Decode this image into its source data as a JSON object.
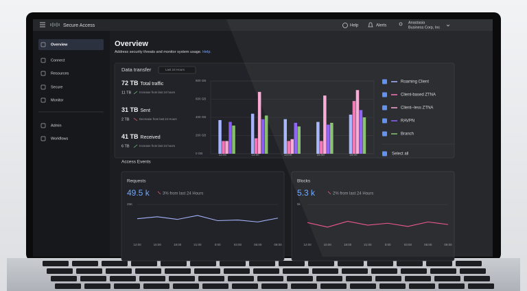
{
  "header": {
    "app": "Secure Access",
    "help": "Help",
    "alerts": "Alerts",
    "user": "Anastasia",
    "org": "Business Corp, Inc"
  },
  "sidebar": {
    "items": [
      "Overview",
      "Connect",
      "Resources",
      "Secure",
      "Monitor",
      "Admin",
      "Workflows"
    ]
  },
  "page": {
    "title": "Overview",
    "subtitle": "Address security threats and monitor system usage.",
    "link": "Help."
  },
  "data_transfer": {
    "title": "Data transfer",
    "range": "Last 24 Hours",
    "stats": [
      {
        "value": "72 TB",
        "label": "Total traffic",
        "delta": "11 TB",
        "note": "Increase from last 24 hours"
      },
      {
        "value": "31 TB",
        "label": "Sent",
        "delta": "2 TB",
        "note": "Decrease from last 24 Hours"
      },
      {
        "value": "41 TB",
        "label": "Received",
        "delta": "6 TB",
        "note": "Increase from last 24 hours"
      }
    ],
    "chart": {
      "type": "bar",
      "categories": [
        "12:00",
        "13:00",
        "14:00",
        "15:00",
        "16:00"
      ],
      "ylim": [
        0,
        800
      ],
      "yticks": [
        {
          "value": 0,
          "label": "0 GB"
        },
        {
          "value": 200,
          "label": "200 GB"
        },
        {
          "value": 400,
          "label": "400 GB"
        },
        {
          "value": 600,
          "label": "600 GB"
        },
        {
          "value": 800,
          "label": "800 GB"
        }
      ],
      "series": [
        {
          "name": "Roaming Client",
          "color": "#a5b4fc",
          "values": [
            370,
            440,
            380,
            350,
            430
          ]
        },
        {
          "name": "Client-based ZTNA",
          "color": "#f472b6",
          "values": [
            140,
            170,
            140,
            140,
            580
          ]
        },
        {
          "name": "Client--less ZTNA",
          "color": "#f9a8d4",
          "values": [
            140,
            680,
            160,
            640,
            700
          ]
        },
        {
          "name": "RAVPN",
          "color": "#8b5cf6",
          "values": [
            350,
            380,
            340,
            320,
            480
          ]
        },
        {
          "name": "Branch",
          "color": "#86c06c",
          "values": [
            310,
            420,
            300,
            340,
            400
          ]
        }
      ],
      "select_all": "Select all"
    }
  },
  "access_events": {
    "title": "Access Events",
    "cards": [
      {
        "title": "Requests",
        "value": "49.5 k",
        "change": "3% from last 24 Hours",
        "chart": {
          "type": "line",
          "color": "#a5b4fc",
          "categories": [
            "12:00",
            "15:00",
            "18:00",
            "21:00",
            "0:00",
            "03:00",
            "06:00",
            "09:00"
          ],
          "values": [
            14000,
            15500,
            13500,
            16500,
            12500,
            13000,
            11500,
            14500
          ],
          "ylim": [
            0,
            25000
          ],
          "yticks": [
            {
              "value": 25000,
              "label": "25K"
            }
          ]
        }
      },
      {
        "title": "Blocks",
        "value": "5.3 k",
        "change": "2% from last 24 Hours",
        "chart": {
          "type": "line",
          "color": "#f0508a",
          "categories": [
            "12:00",
            "15:00",
            "18:00",
            "21:00",
            "0:00",
            "03:00",
            "06:00",
            "09:00"
          ],
          "values": [
            2200,
            1500,
            2400,
            1800,
            2100,
            1600,
            2300,
            1900
          ],
          "ylim": [
            0,
            5000
          ],
          "yticks": [
            {
              "value": 5000,
              "label": "5k"
            }
          ]
        }
      }
    ]
  }
}
